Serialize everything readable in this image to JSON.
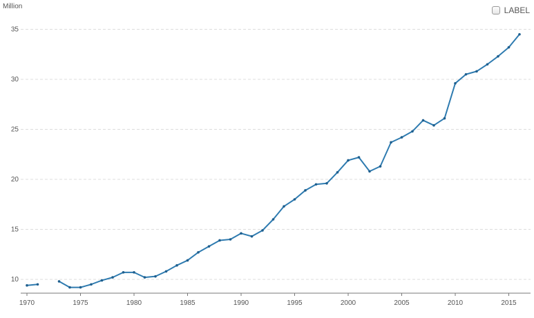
{
  "unit_label": "Million",
  "toggle": {
    "label": "LABEL",
    "checked": false
  },
  "colors": {
    "line": "#2e7bb0",
    "grid": "#dcdcdc",
    "axis": "#777777",
    "text": "#555555"
  },
  "chart_data": {
    "type": "line",
    "title": "",
    "xlabel": "",
    "ylabel": "Million",
    "xlim": [
      1970,
      2017
    ],
    "ylim": [
      9,
      36
    ],
    "x_ticks": [
      1970,
      1975,
      1980,
      1985,
      1990,
      1995,
      2000,
      2005,
      2010,
      2015
    ],
    "y_ticks": [
      10,
      15,
      20,
      25,
      30,
      35
    ],
    "grid": true,
    "legend": "none",
    "series": [
      {
        "x": [
          1970,
          1971,
          1972,
          1973,
          1974,
          1975,
          1976,
          1977,
          1978,
          1979,
          1980,
          1981,
          1982,
          1983,
          1984,
          1985,
          1986,
          1987,
          1988,
          1989,
          1990,
          1991,
          1992,
          1993,
          1994,
          1995,
          1996,
          1997,
          1998,
          1999,
          2000,
          2001,
          2002,
          2003,
          2004,
          2005,
          2006,
          2007,
          2008,
          2009,
          2010,
          2011,
          2012,
          2013,
          2014,
          2015,
          2016
        ],
        "values": [
          9.4,
          9.5,
          null,
          9.8,
          9.2,
          9.2,
          9.5,
          9.9,
          10.2,
          10.7,
          10.7,
          10.2,
          10.3,
          10.8,
          11.4,
          11.9,
          12.7,
          13.3,
          13.9,
          14.0,
          14.6,
          14.3,
          14.9,
          16.0,
          17.3,
          18.0,
          18.9,
          19.5,
          19.6,
          20.7,
          21.9,
          22.2,
          20.8,
          21.3,
          23.7,
          24.2,
          24.8,
          25.9,
          25.4,
          26.1,
          29.6,
          30.5,
          30.8,
          31.5,
          32.3,
          33.2,
          34.5
        ]
      }
    ]
  }
}
